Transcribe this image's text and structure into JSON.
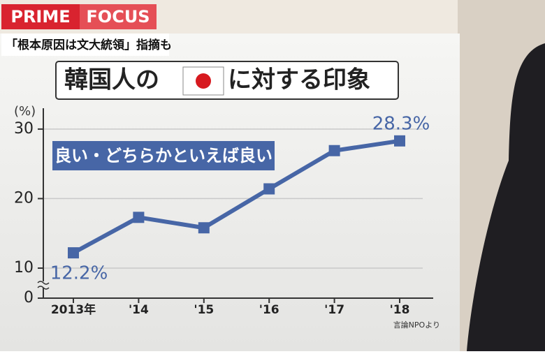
{
  "header": {
    "program": [
      "PRIME",
      "FOCUS"
    ],
    "caption": "「根本原因は文大統領」指摘も"
  },
  "chart_data": {
    "type": "line",
    "title": [
      "韓国人の",
      "に対する印象"
    ],
    "y_unit": "(%)",
    "categories": [
      "2013年",
      "'14",
      "'15",
      "'16",
      "'17",
      "'18"
    ],
    "series": [
      {
        "name": "良い・どちらかといえば良い",
        "color": "#4766a6",
        "values": [
          12.2,
          17.3,
          15.8,
          21.4,
          26.9,
          28.3
        ],
        "value_labels": [
          "12.2%",
          null,
          null,
          null,
          null,
          "28.3%"
        ]
      }
    ],
    "ylim": [
      0,
      33
    ],
    "yticks": [
      0,
      10,
      20,
      30
    ],
    "axis_break": true,
    "grid": true,
    "source": "言論NPOより"
  }
}
